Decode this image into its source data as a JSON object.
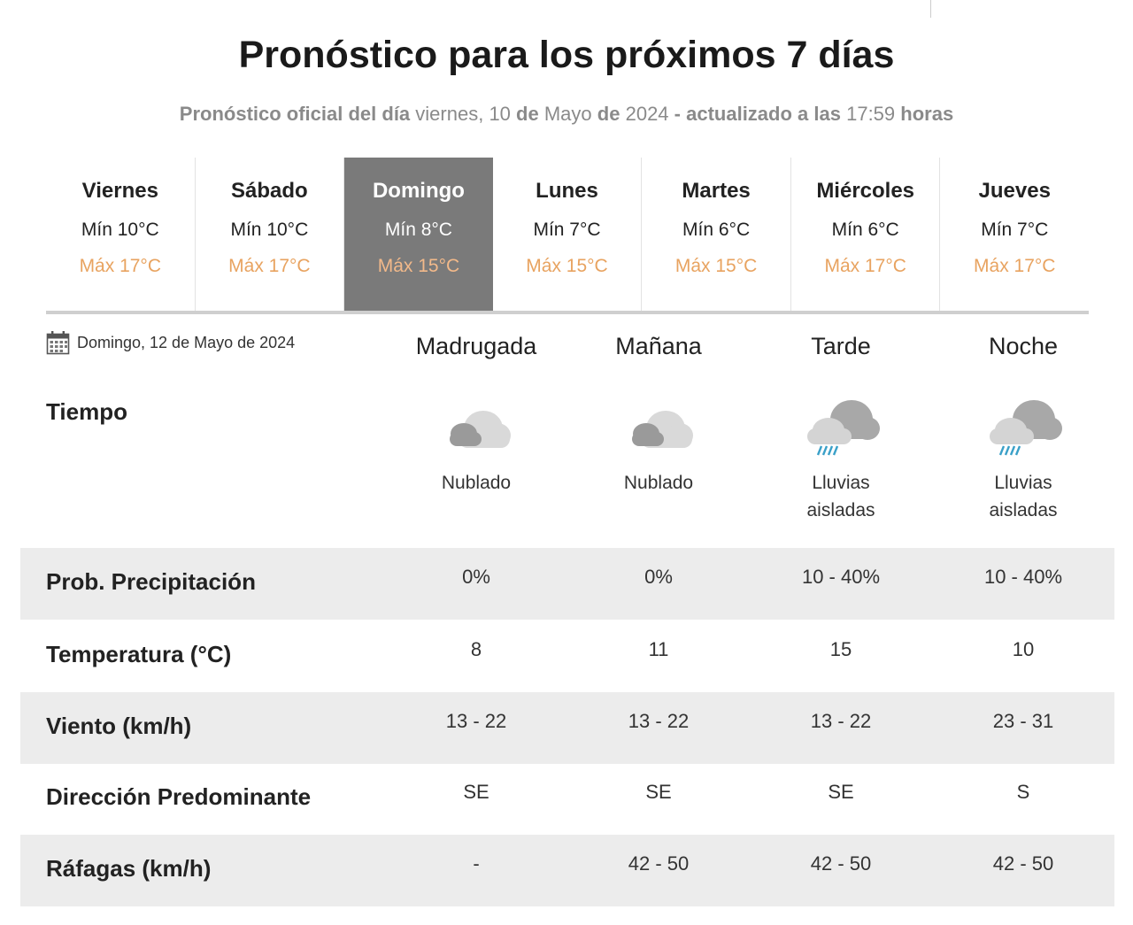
{
  "header": {
    "title": "Pronóstico para los próximos 7 días",
    "subtitle_prefix": "Pronóstico oficial del día",
    "subtitle_dayname": "viernes, 10",
    "subtitle_de1": "de",
    "subtitle_month": "Mayo",
    "subtitle_de2": "de",
    "subtitle_year": "2024",
    "subtitle_updated": "- actualizado a las",
    "subtitle_time": "17:59",
    "subtitle_horas": "horas"
  },
  "days": [
    {
      "name": "Viernes",
      "min": "Mín 10°C",
      "max": "Máx 17°C"
    },
    {
      "name": "Sábado",
      "min": "Mín 10°C",
      "max": "Máx 17°C"
    },
    {
      "name": "Domingo",
      "min": "Mín 8°C",
      "max": "Máx 15°C"
    },
    {
      "name": "Lunes",
      "min": "Mín 7°C",
      "max": "Máx 15°C"
    },
    {
      "name": "Martes",
      "min": "Mín 6°C",
      "max": "Máx 15°C"
    },
    {
      "name": "Miércoles",
      "min": "Mín 6°C",
      "max": "Máx 17°C"
    },
    {
      "name": "Jueves",
      "min": "Mín 7°C",
      "max": "Máx 17°C"
    }
  ],
  "active_day": "Domingo",
  "detail": {
    "date": "Domingo, 12 de Mayo de 2024",
    "periods": [
      "Madrugada",
      "Mañana",
      "Tarde",
      "Noche"
    ],
    "weather_label": "Tiempo",
    "weather": [
      {
        "icon": "cloudy-icon",
        "desc": "Nublado"
      },
      {
        "icon": "cloudy-icon",
        "desc": "Nublado"
      },
      {
        "icon": "rain-cloud-icon",
        "desc": "Lluvias aisladas"
      },
      {
        "icon": "rain-cloud-icon",
        "desc": "Lluvias aisladas"
      }
    ],
    "rows": [
      {
        "label": "Prob. Precipitación",
        "values": [
          "0%",
          "0%",
          "10 - 40%",
          "10 - 40%"
        ]
      },
      {
        "label": "Temperatura (°C)",
        "values": [
          "8",
          "11",
          "15",
          "10"
        ]
      },
      {
        "label": "Viento (km/h)",
        "values": [
          "13 - 22",
          "13 - 22",
          "13 - 22",
          "23 - 31"
        ]
      },
      {
        "label": "Dirección Predominante",
        "values": [
          "SE",
          "SE",
          "SE",
          "S"
        ]
      },
      {
        "label": "Ráfagas (km/h)",
        "values": [
          "-",
          "42 - 50",
          "42 - 50",
          "42 - 50"
        ]
      }
    ]
  },
  "colors": {
    "active_tab": "#7a7a7a",
    "max_temp": "#e8a360",
    "row_shade": "#ececec",
    "rain": "#3aa0c8"
  }
}
